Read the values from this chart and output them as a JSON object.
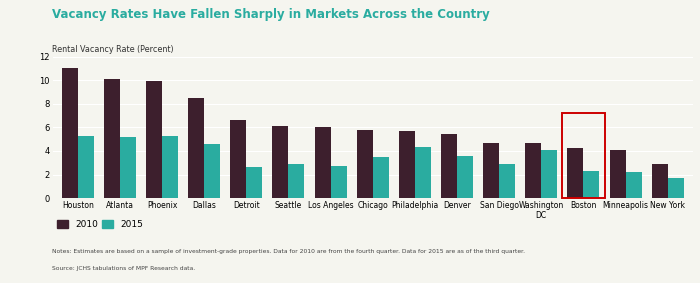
{
  "title": "Vacancy Rates Have Fallen Sharply in Markets Across the Country",
  "ylabel": "Rental Vacancy Rate (Percent)",
  "categories": [
    "Houston",
    "Atlanta",
    "Phoenix",
    "Dallas",
    "Detroit",
    "Seattle",
    "Los Angeles",
    "Chicago",
    "Philadelphia",
    "Denver",
    "San Diego",
    "Washington\nDC",
    "Boston",
    "Minneapolis",
    "New York"
  ],
  "values_2010": [
    11.0,
    10.1,
    9.9,
    8.5,
    6.6,
    6.1,
    6.0,
    5.8,
    5.65,
    5.4,
    4.65,
    4.65,
    4.25,
    4.05,
    2.9
  ],
  "values_2015": [
    5.25,
    5.15,
    5.25,
    4.6,
    2.6,
    2.85,
    2.7,
    3.45,
    4.35,
    3.6,
    2.85,
    4.05,
    2.3,
    2.2,
    1.7
  ],
  "color_2010": "#3d1f2d",
  "color_2015": "#2aaca0",
  "ylim": [
    0,
    12
  ],
  "yticks": [
    0,
    2,
    4,
    6,
    8,
    10,
    12
  ],
  "highlight_index": 12,
  "highlight_color": "#cc0000",
  "notes_line1": "Notes: Estimates are based on a sample of investment-grade properties. Data for 2010 are from the fourth quarter. Data for 2015 are as of the third quarter.",
  "notes_line2": "Source: JCHS tabulations of MPF Research data.",
  "background_color": "#f5f5ef",
  "legend_label_2010": "2010",
  "legend_label_2015": "2015",
  "bar_width": 0.38,
  "title_color": "#2aaca0",
  "title_fontsize": 8.5,
  "ylabel_fontsize": 5.8,
  "tick_fontsize": 5.5,
  "notes_fontsize": 4.3
}
